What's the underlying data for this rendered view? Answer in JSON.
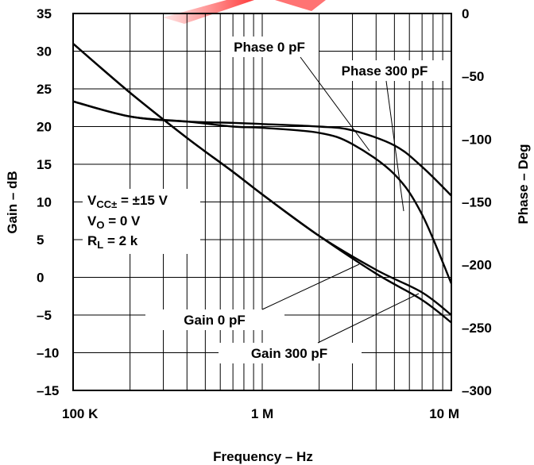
{
  "chart_data": {
    "type": "line",
    "xlabel": "Frequency – Hz",
    "ylabel_left": "Gain – dB",
    "ylabel_right": "Phase – Deg",
    "x_scale": "log",
    "xlim": [
      100000,
      10000000
    ],
    "ylim_left": [
      -15,
      35
    ],
    "ylim_right": [
      -300,
      0
    ],
    "grid": true,
    "x_ticks": [
      {
        "value": 100000,
        "label": "100 K"
      },
      {
        "value": 1000000,
        "label": "1 M"
      },
      {
        "value": 10000000,
        "label": "10 M"
      }
    ],
    "y_ticks_left": [
      {
        "value": 35,
        "label": "35"
      },
      {
        "value": 30,
        "label": "30"
      },
      {
        "value": 25,
        "label": "25"
      },
      {
        "value": 20,
        "label": "20"
      },
      {
        "value": 15,
        "label": "15"
      },
      {
        "value": 10,
        "label": "10"
      },
      {
        "value": 5,
        "label": "5"
      },
      {
        "value": 0,
        "label": "0"
      },
      {
        "value": -5,
        "label": "–5"
      },
      {
        "value": -10,
        "label": "–10"
      },
      {
        "value": -15,
        "label": "–15"
      }
    ],
    "y_ticks_right": [
      {
        "value": 0,
        "label": "0"
      },
      {
        "value": -50,
        "label": "–50"
      },
      {
        "value": -100,
        "label": "–100"
      },
      {
        "value": -150,
        "label": "–150"
      },
      {
        "value": -200,
        "label": "–200"
      },
      {
        "value": -250,
        "label": "–250"
      },
      {
        "value": -300,
        "label": "–300"
      }
    ],
    "series": [
      {
        "name": "Gain 0 pF",
        "axis": "left",
        "x": [
          100000,
          200000,
          400000,
          700000,
          1000000,
          2000000,
          4000000,
          7000000,
          10000000
        ],
        "y": [
          31,
          24.5,
          18.5,
          14,
          11,
          5.5,
          1,
          -2,
          -5
        ]
      },
      {
        "name": "Gain 300 pF",
        "axis": "left",
        "x": [
          100000,
          200000,
          400000,
          700000,
          1000000,
          2000000,
          4000000,
          7000000,
          10000000
        ],
        "y": [
          31,
          24.5,
          18.5,
          14,
          11,
          5.5,
          0.5,
          -3,
          -6
        ]
      },
      {
        "name": "Phase 0 pF",
        "axis": "right",
        "x": [
          100000,
          200000,
          400000,
          700000,
          1000000,
          2000000,
          3000000,
          5000000,
          7000000,
          10000000
        ],
        "y": [
          -70,
          -82,
          -86,
          -87,
          -88,
          -90,
          -93,
          -105,
          -122,
          -145
        ]
      },
      {
        "name": "Phase 300 pF",
        "axis": "right",
        "x": [
          100000,
          200000,
          400000,
          700000,
          1000000,
          2000000,
          3000000,
          5000000,
          7000000,
          10000000
        ],
        "y": [
          -70,
          -82,
          -86,
          -90,
          -91,
          -95,
          -104,
          -128,
          -160,
          -215
        ]
      }
    ],
    "annotations": {
      "phase0": "Phase 0 pF",
      "phase300": "Phase 300 pF",
      "gain0": "Gain 0 pF",
      "gain300": "Gain 300 pF"
    },
    "conditions": {
      "vcc_main": "V",
      "vcc_sub": "CC±",
      "vcc_value": " = ±15 V",
      "vo_main": "V",
      "vo_sub": "O",
      "vo_value": " = 0 V",
      "rl_main": "R",
      "rl_sub": "L",
      "rl_value": " = 2 k"
    }
  }
}
